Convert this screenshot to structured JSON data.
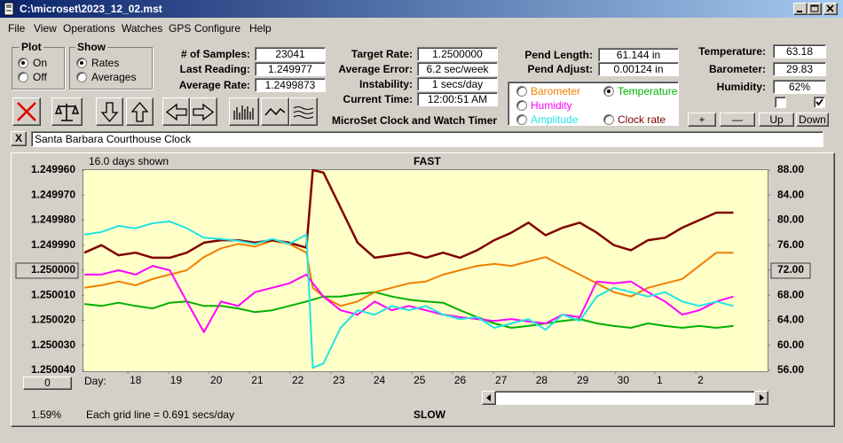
{
  "window": {
    "title": "C:\\microset\\2023_12_02.mst"
  },
  "menu": [
    "File",
    "View",
    "Operations",
    "Watches",
    "GPS",
    "Configure",
    "Help"
  ],
  "plot_group": {
    "label": "Plot",
    "options": [
      "On",
      "Off"
    ],
    "selected": 0
  },
  "show_group": {
    "label": "Show",
    "options": [
      "Rates",
      "Averages"
    ],
    "selected": 0
  },
  "readouts": [
    [
      {
        "label": "# of Samples:",
        "value": "23041"
      },
      {
        "label": "Last Reading:",
        "value": "1.249977"
      },
      {
        "label": "Average Rate:",
        "value": "1.2499873"
      }
    ],
    [
      {
        "label": "Target Rate:",
        "value": "1.2500000"
      },
      {
        "label": "Average Error:",
        "value": "6.2 sec/week"
      },
      {
        "label": "Instability:",
        "value": "1 secs/day"
      },
      {
        "label": "Current Time:",
        "value": "12:00:51 AM"
      }
    ],
    [
      {
        "label": "Pend Length:",
        "value": "61.144 in"
      },
      {
        "label": "Pend Adjust:",
        "value": "0.00124 in"
      }
    ],
    [
      {
        "label": "Temperature:",
        "value": "63.18"
      },
      {
        "label": "Barometer:",
        "value": "29.83"
      },
      {
        "label": "Humidity:",
        "value": "62%"
      }
    ]
  ],
  "app_name": "MicroSet Clock and Watch Timer",
  "checkboxes": [
    false,
    true
  ],
  "buttons": [
    "+",
    "—",
    "Up",
    "Down"
  ],
  "close_button": "X",
  "clock_name": "Santa Barbara Courthouse Clock",
  "chart_data": {
    "type": "line",
    "days_shown": "16.0 days shown",
    "top_label": "FAST",
    "bottom_label": "SLOW",
    "grid_note": "Each grid line = 0.691 secs/day",
    "x_label": "Day:",
    "percent": "1.59%",
    "offset_button": "0",
    "selected_series": 1,
    "x": [
      0,
      0.4,
      0.8,
      1.2,
      1.6,
      2,
      2.4,
      2.8,
      3.2,
      3.6,
      4,
      4.4,
      4.8,
      5.2,
      5.35,
      5.6,
      6,
      6.4,
      6.8,
      7.2,
      7.6,
      8,
      8.4,
      8.8,
      9.2,
      9.6,
      10,
      10.4,
      10.8,
      11.2,
      11.6,
      12,
      12.4,
      12.8,
      13.2,
      13.6,
      14,
      14.4,
      14.8,
      15.2
    ],
    "xlim": [
      0,
      16
    ],
    "xticks": [
      {
        "value": 1.02,
        "label": "18"
      },
      {
        "value": 1.97,
        "label": "19"
      },
      {
        "value": 2.91,
        "label": "20"
      },
      {
        "value": 3.87,
        "label": "21"
      },
      {
        "value": 4.82,
        "label": "22"
      },
      {
        "value": 5.78,
        "label": "23"
      },
      {
        "value": 6.73,
        "label": "24"
      },
      {
        "value": 7.67,
        "label": "25"
      },
      {
        "value": 8.62,
        "label": "26"
      },
      {
        "value": 9.58,
        "label": "27"
      },
      {
        "value": 10.53,
        "label": "28"
      },
      {
        "value": 11.49,
        "label": "29"
      },
      {
        "value": 12.44,
        "label": "30"
      },
      {
        "value": 13.36,
        "label": "1"
      },
      {
        "value": 14.32,
        "label": "2"
      }
    ],
    "ylim": [
      1.24996,
      1.25004
    ],
    "y_inverted": true,
    "yticks": [
      {
        "value": 1.24996,
        "label": "1.249960"
      },
      {
        "value": 1.24997,
        "label": "1.249970"
      },
      {
        "value": 1.24998,
        "label": "1.249980"
      },
      {
        "value": 1.24999,
        "label": "1.249990"
      },
      {
        "value": 1.25,
        "label": "1.250000"
      },
      {
        "value": 1.25001,
        "label": "1.250010"
      },
      {
        "value": 1.25002,
        "label": "1.250020"
      },
      {
        "value": 1.25003,
        "label": "1.250030"
      },
      {
        "value": 1.25004,
        "label": "1.250040"
      }
    ],
    "boxed_ytick": 4,
    "y2lim": [
      56,
      88
    ],
    "y2ticks": [
      {
        "value": 88,
        "label": "88.00"
      },
      {
        "value": 84,
        "label": "84.00"
      },
      {
        "value": 80,
        "label": "80.00"
      },
      {
        "value": 76,
        "label": "76.00"
      },
      {
        "value": 72,
        "label": "72.00"
      },
      {
        "value": 68,
        "label": "68.00"
      },
      {
        "value": 64,
        "label": "64.00"
      },
      {
        "value": 60,
        "label": "60.00"
      },
      {
        "value": 56,
        "label": "56.00"
      }
    ],
    "boxed_y2tick": 4,
    "series": [
      {
        "name": "Barometer",
        "color": "#f08000",
        "axis": "y2",
        "values": [
          69.2,
          69.6,
          70.2,
          69.6,
          70.6,
          71.3,
          72.0,
          74.1,
          75.5,
          76.2,
          75.8,
          76.7,
          76.2,
          74.8,
          69.2,
          67.8,
          66.3,
          67.0,
          68.5,
          69.2,
          69.9,
          70.2,
          71.3,
          72.0,
          72.7,
          73.0,
          72.7,
          73.4,
          74.1,
          72.7,
          71.3,
          69.9,
          68.5,
          67.8,
          69.2,
          69.9,
          70.6,
          72.7,
          74.8,
          74.8
        ]
      },
      {
        "name": "Temperature",
        "color": "#00b000",
        "axis": "y2",
        "values": [
          66.6,
          66.3,
          66.8,
          66.3,
          65.9,
          66.8,
          67.0,
          66.3,
          66.3,
          65.9,
          65.3,
          65.6,
          66.3,
          67.0,
          67.3,
          67.8,
          67.8,
          68.2,
          68.5,
          67.8,
          67.3,
          67.0,
          66.8,
          65.6,
          64.5,
          63.5,
          62.8,
          63.1,
          63.5,
          63.9,
          64.2,
          63.5,
          63.1,
          62.8,
          63.5,
          63.1,
          62.8,
          63.1,
          62.8,
          63.1
        ]
      },
      {
        "name": "Humidity",
        "color": "#ff00ff",
        "axis": "y2",
        "values": [
          71.3,
          71.3,
          72.0,
          71.3,
          72.7,
          72.0,
          67.0,
          62.1,
          67.0,
          66.3,
          68.5,
          69.2,
          69.9,
          71.3,
          69.9,
          67.8,
          65.6,
          64.9,
          67.0,
          65.6,
          66.3,
          65.6,
          64.9,
          64.5,
          64.2,
          63.9,
          64.2,
          63.8,
          63.5,
          64.9,
          64.5,
          70.2,
          69.9,
          70.2,
          68.5,
          67.0,
          64.9,
          65.6,
          67.0,
          67.8
        ]
      },
      {
        "name": "Amplitude",
        "color": "#22e4e4",
        "axis": "y2",
        "values": [
          77.7,
          78.1,
          79.1,
          78.7,
          79.5,
          79.8,
          78.7,
          77.2,
          77.0,
          76.7,
          76.2,
          77.0,
          76.2,
          77.7,
          56.4,
          57.1,
          62.8,
          65.6,
          64.9,
          66.3,
          65.6,
          66.3,
          64.9,
          64.2,
          64.5,
          62.8,
          63.5,
          64.2,
          62.5,
          64.9,
          63.9,
          67.8,
          69.2,
          68.5,
          67.8,
          68.5,
          67.0,
          66.3,
          67.0,
          66.3
        ]
      },
      {
        "name": "Clock rate",
        "color": "#800000",
        "axis": "y",
        "values": [
          1.249993,
          1.24999,
          1.249994,
          1.249993,
          1.249995,
          1.249995,
          1.249993,
          1.249989,
          1.249988,
          1.249988,
          1.249989,
          1.249988,
          1.249989,
          1.249991,
          1.24996,
          1.249961,
          1.249975,
          1.249989,
          1.249995,
          1.249994,
          1.249993,
          1.249995,
          1.249993,
          1.249995,
          1.249992,
          1.249988,
          1.249985,
          1.249981,
          1.249986,
          1.249983,
          1.249981,
          1.249985,
          1.24999,
          1.249992,
          1.249988,
          1.249987,
          1.249983,
          1.24998,
          1.249977,
          1.249977
        ]
      }
    ]
  }
}
